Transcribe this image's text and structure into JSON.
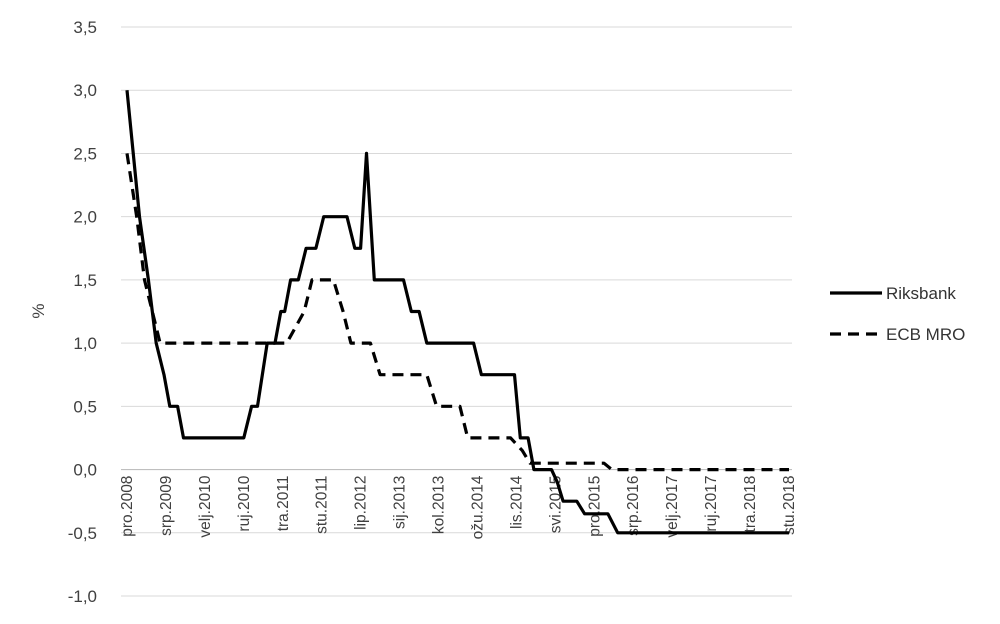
{
  "chart_data": {
    "type": "line",
    "title": "",
    "xlabel": "",
    "ylabel": "%",
    "ylim": [
      -1.0,
      3.5
    ],
    "yticks": [
      "3,5",
      "3,0",
      "2,5",
      "2,0",
      "1,5",
      "1,0",
      "0,5",
      "0,0",
      "-0,5",
      "-1,0"
    ],
    "ytick_values": [
      3.5,
      3.0,
      2.5,
      2.0,
      1.5,
      1.0,
      0.5,
      0.0,
      -0.5,
      -1.0
    ],
    "grid": true,
    "legend_position": "right",
    "xtick_labels": [
      "pro.2008",
      "srp.2009",
      "velj.2010",
      "ruj.2010",
      "tra.2011",
      "stu.2011",
      "lip.2012",
      "sij.2013",
      "kol.2013",
      "ožu.2014",
      "lis.2014",
      "svi.2015",
      "pro.2015",
      "srp.2016",
      "velj.2017",
      "ruj.2017",
      "tra.2018",
      "stu.2018"
    ],
    "series": [
      {
        "name": "Riksbank",
        "style": "solid",
        "color": "#000000",
        "points": [
          [
            0.0,
            3.0
          ],
          [
            0.32,
            2.0
          ],
          [
            0.55,
            1.5
          ],
          [
            0.75,
            1.0
          ],
          [
            0.95,
            0.75
          ],
          [
            1.1,
            0.5
          ],
          [
            1.3,
            0.5
          ],
          [
            1.45,
            0.25
          ],
          [
            3.0,
            0.25
          ],
          [
            3.2,
            0.5
          ],
          [
            3.35,
            0.5
          ],
          [
            3.6,
            1.0
          ],
          [
            3.8,
            1.0
          ],
          [
            3.95,
            1.25
          ],
          [
            4.05,
            1.25
          ],
          [
            4.2,
            1.5
          ],
          [
            4.4,
            1.5
          ],
          [
            4.6,
            1.75
          ],
          [
            4.85,
            1.75
          ],
          [
            5.05,
            2.0
          ],
          [
            5.65,
            2.0
          ],
          [
            5.85,
            1.75
          ],
          [
            6.0,
            1.75
          ],
          [
            6.15,
            2.5
          ],
          [
            6.35,
            1.5
          ],
          [
            7.1,
            1.5
          ],
          [
            7.3,
            1.25
          ],
          [
            7.5,
            1.25
          ],
          [
            7.7,
            1.0
          ],
          [
            8.9,
            1.0
          ],
          [
            9.1,
            0.75
          ],
          [
            9.95,
            0.75
          ],
          [
            10.1,
            0.25
          ],
          [
            10.3,
            0.25
          ],
          [
            10.45,
            0.0
          ],
          [
            10.9,
            0.0
          ],
          [
            11.05,
            -0.1
          ],
          [
            11.2,
            -0.25
          ],
          [
            11.55,
            -0.25
          ],
          [
            11.75,
            -0.35
          ],
          [
            12.35,
            -0.35
          ],
          [
            12.6,
            -0.5
          ],
          [
            17.0,
            -0.5
          ]
        ]
      },
      {
        "name": "ECB MRO",
        "style": "dashed",
        "color": "#000000",
        "points": [
          [
            0.0,
            2.5
          ],
          [
            0.25,
            2.0
          ],
          [
            0.45,
            1.5
          ],
          [
            0.65,
            1.25
          ],
          [
            0.85,
            1.0
          ],
          [
            4.1,
            1.0
          ],
          [
            4.55,
            1.25
          ],
          [
            4.75,
            1.5
          ],
          [
            5.3,
            1.5
          ],
          [
            5.55,
            1.25
          ],
          [
            5.75,
            1.0
          ],
          [
            6.25,
            1.0
          ],
          [
            6.5,
            0.75
          ],
          [
            7.7,
            0.75
          ],
          [
            7.95,
            0.5
          ],
          [
            8.55,
            0.5
          ],
          [
            8.75,
            0.25
          ],
          [
            9.85,
            0.25
          ],
          [
            10.15,
            0.15
          ],
          [
            10.35,
            0.05
          ],
          [
            12.05,
            0.05
          ],
          [
            12.25,
            0.05
          ],
          [
            12.45,
            0.0
          ],
          [
            17.0,
            0.0
          ]
        ]
      }
    ]
  }
}
